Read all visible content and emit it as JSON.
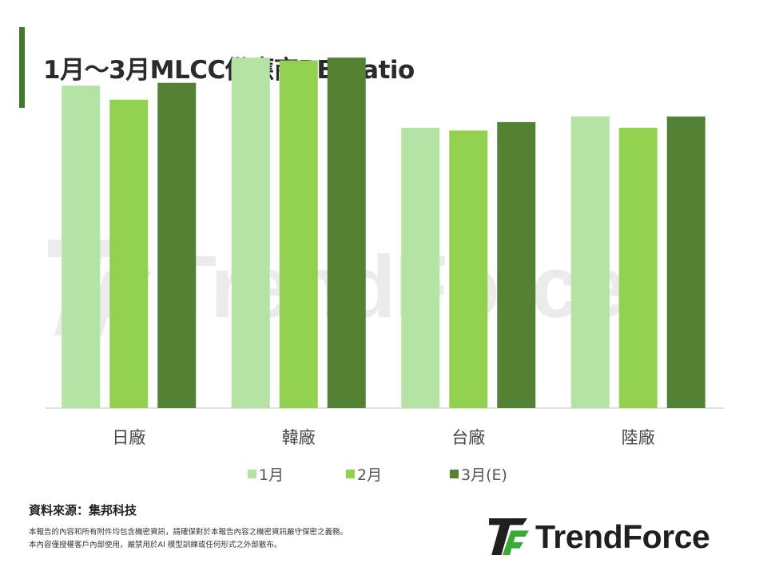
{
  "title": "1月～3月MLCC供應商BB Ratio",
  "source": "資料來源：集邦科技",
  "disclaimer_lines": [
    "本報告的內容和所有附件均包含機密資訊，請確保對於本報告內容之機密資訊嚴守保密之義務。",
    "本內容僅授權客戶內部使用，嚴禁用於AI 模型訓練或任何形式之外部散布。"
  ],
  "logo": {
    "text": "TrendForce",
    "watermark_text": "TrendForce"
  },
  "colors": {
    "jan": "#b5e3a3",
    "feb": "#92d050",
    "mar": "#548235",
    "accent": "#3f7a2a",
    "axis": "#d9d9d9"
  },
  "chart_data": {
    "type": "bar",
    "title": "1月～3月MLCC供應商BB Ratio",
    "categories": [
      "日廠",
      "韓廠",
      "台廠",
      "陸廠"
    ],
    "series": [
      {
        "name": "1月",
        "values": [
          1.15,
          1.25,
          1.0,
          1.04
        ]
      },
      {
        "name": "2月",
        "values": [
          1.1,
          1.24,
          0.99,
          1.0
        ]
      },
      {
        "name": "3月(E)",
        "values": [
          1.16,
          1.25,
          1.02,
          1.04
        ]
      }
    ],
    "ylim": [
      0,
      1.37
    ],
    "y_axis_visible": false,
    "grid": false,
    "legend": "bottom"
  }
}
